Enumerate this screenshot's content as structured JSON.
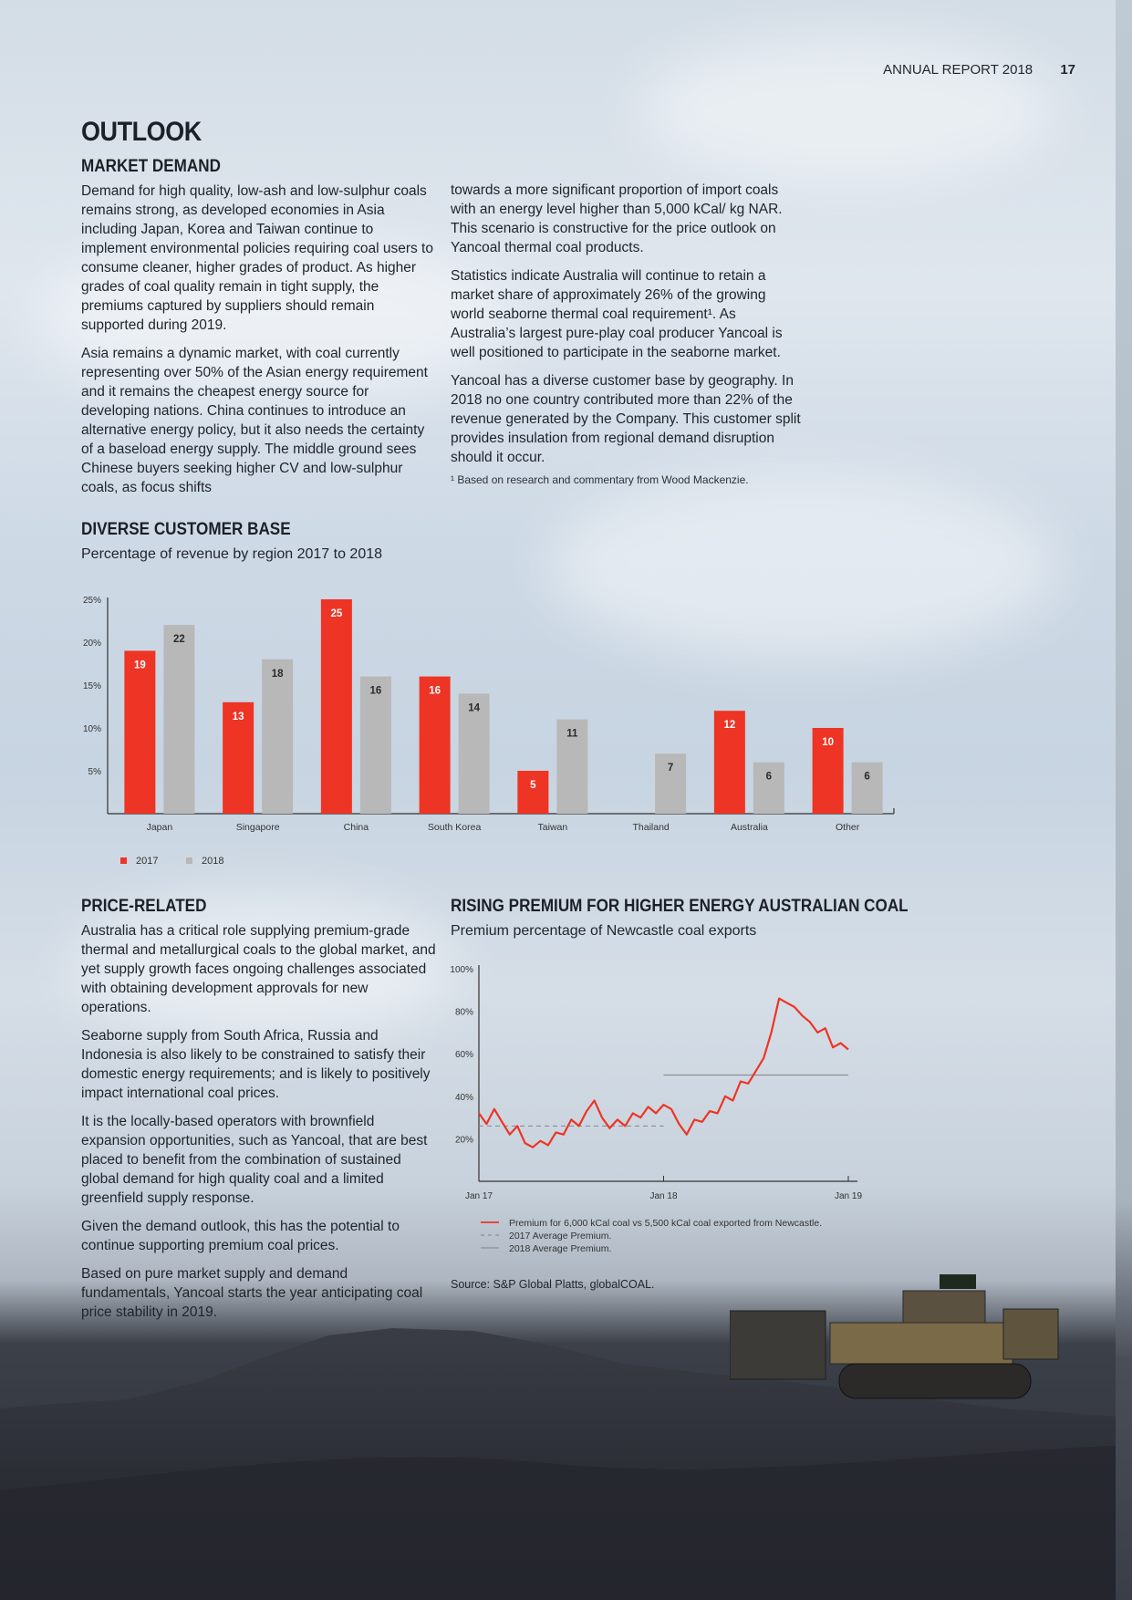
{
  "header": {
    "report": "ANNUAL REPORT 2018",
    "page_number": "17"
  },
  "outlook": {
    "title": "OUTLOOK",
    "market_demand": {
      "heading": "MARKET DEMAND",
      "left_paragraphs": [
        "Demand for high quality, low-ash and low-sulphur coals remains strong, as developed economies in Asia including Japan, Korea and Taiwan continue to implement environmental policies requiring coal users to consume cleaner, higher grades of product. As higher grades of coal quality remain in tight supply, the premiums captured by suppliers should remain supported during 2019.",
        "Asia remains a dynamic market, with coal currently representing over 50% of the Asian energy requirement and it remains the cheapest energy source for developing nations. China continues to introduce an alternative energy policy, but it also needs the certainty of a baseload energy supply. The middle ground sees Chinese buyers seeking higher CV and low-sulphur coals, as focus shifts"
      ],
      "right_paragraphs": [
        "towards a more significant proportion of import coals with an energy level higher than 5,000 kCal/ kg NAR. This scenario is constructive for the price outlook on Yancoal thermal coal products.",
        "Statistics indicate Australia will continue to retain a market share of approximately 26% of the growing world seaborne thermal coal requirement¹. As Australia’s largest pure-play coal producer Yancoal is well positioned to participate in the seaborne market.",
        "Yancoal has a diverse customer base by geography. In 2018 no one country contributed more than 22% of the revenue generated by the Company. This customer split provides insulation from regional demand disruption should it occur."
      ],
      "footnote": "¹ Based on research and commentary from Wood Mackenzie."
    },
    "customer_base": {
      "heading": "DIVERSE CUSTOMER BASE",
      "subtitle": "Percentage of revenue by region 2017 to 2018"
    },
    "price_related": {
      "heading": "PRICE-RELATED",
      "paragraphs": [
        "Australia has a critical role supplying premium-grade thermal and metallurgical coals to the global market, and yet supply growth faces ongoing challenges associated with obtaining development approvals for new operations.",
        "Seaborne supply from South Africa, Russia and Indonesia is also likely to be constrained to satisfy their domestic energy requirements; and is likely to positively impact international coal prices.",
        "It is the locally-based operators with brownfield expansion opportunities, such as Yancoal, that are best placed to benefit from the combination of sustained global demand for high quality coal and a limited greenfield supply response.",
        "Given the demand outlook, this has the potential to continue supporting premium coal prices.",
        "Based on pure market supply and demand fundamentals, Yancoal starts the year anticipating coal price stability in 2019."
      ]
    },
    "premium": {
      "heading": "RISING PREMIUM FOR HIGHER ENERGY AUSTRALIAN COAL",
      "subtitle": "Premium percentage of Newcastle coal exports",
      "source": "Source: S&P Global Platts, globalCOAL."
    }
  },
  "colors": {
    "red": "#ee3424",
    "grey": "#b8b8b8",
    "text": "#1f242b"
  },
  "chart_data": [
    {
      "type": "bar",
      "title": "",
      "categories": [
        "Japan",
        "Singapore",
        "China",
        "South Korea",
        "Taiwan",
        "Thailand",
        "Australia",
        "Other"
      ],
      "series": [
        {
          "name": "2017",
          "values": [
            19,
            13,
            25,
            16,
            5,
            null,
            12,
            10
          ],
          "color": "#ee3424"
        },
        {
          "name": "2018",
          "values": [
            22,
            18,
            16,
            14,
            11,
            7,
            6,
            6
          ],
          "color": "#b8b8b8"
        }
      ],
      "yticks": [
        "5%",
        "10%",
        "15%",
        "20%",
        "25%"
      ],
      "ylim": [
        0,
        25
      ],
      "legend": "bottom-left",
      "grid": false
    },
    {
      "type": "line",
      "title": "",
      "xticks": [
        "Jan 17",
        "Jan 18",
        "Jan 19"
      ],
      "yticks": [
        "20%",
        "40%",
        "60%",
        "80%",
        "100%"
      ],
      "ylim": [
        0,
        100
      ],
      "xlim": [
        "2017-01",
        "2019-01"
      ],
      "series": [
        {
          "name": "Premium for 6,000 kCal coal vs 5,500 kCal coal exported from Newcastle.",
          "color": "#ee3424",
          "x": [
            "2017-01",
            "2017-01",
            "2017-02",
            "2017-02",
            "2017-03",
            "2017-03",
            "2017-04",
            "2017-04",
            "2017-05",
            "2017-05",
            "2017-06",
            "2017-06",
            "2017-07",
            "2017-07",
            "2017-08",
            "2017-08",
            "2017-09",
            "2017-09",
            "2017-10",
            "2017-10",
            "2017-11",
            "2017-11",
            "2017-12",
            "2017-12",
            "2018-01",
            "2018-01",
            "2018-02",
            "2018-02",
            "2018-03",
            "2018-03",
            "2018-04",
            "2018-04",
            "2018-05",
            "2018-05",
            "2018-06",
            "2018-06",
            "2018-07",
            "2018-07",
            "2018-08",
            "2018-08",
            "2018-09",
            "2018-09",
            "2018-10",
            "2018-10",
            "2018-11",
            "2018-11",
            "2018-12",
            "2018-12",
            "2019-01"
          ],
          "values": [
            32,
            27,
            34,
            28,
            22,
            26,
            18,
            16,
            19,
            17,
            23,
            22,
            29,
            26,
            33,
            38,
            30,
            25,
            29,
            26,
            32,
            30,
            35,
            32,
            36,
            34,
            27,
            22,
            29,
            28,
            33,
            32,
            40,
            38,
            47,
            46,
            52,
            58,
            70,
            86,
            84,
            82,
            78,
            75,
            70,
            72,
            63,
            65,
            62
          ]
        },
        {
          "name": "2017 Average Premium.",
          "style": "dashed",
          "color": "#8a8f96",
          "x": [
            "2017-01",
            "2018-01"
          ],
          "values": [
            26,
            26
          ]
        },
        {
          "name": "2018 Average Premium.",
          "style": "solid",
          "color": "#8a8f96",
          "x": [
            "2018-01",
            "2019-01"
          ],
          "values": [
            50,
            50
          ]
        }
      ],
      "legend": "bottom",
      "grid": false
    }
  ]
}
